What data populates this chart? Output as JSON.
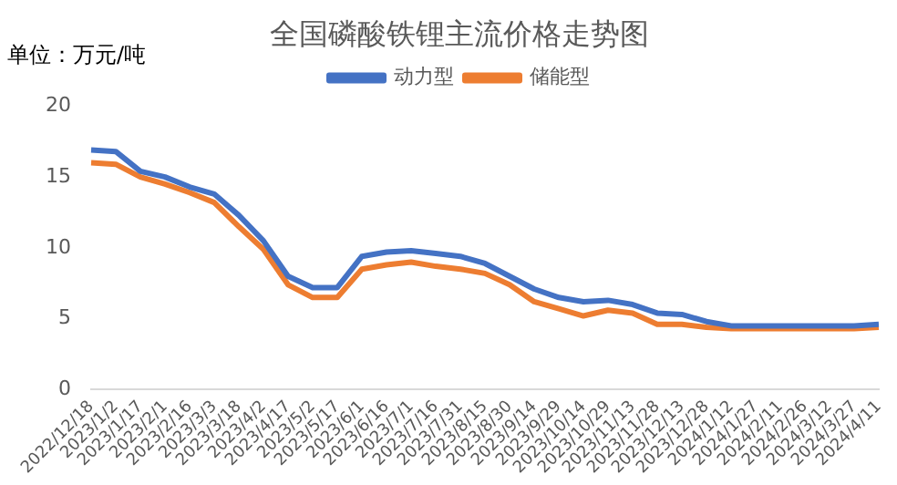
{
  "chart_data": {
    "type": "line",
    "title": "全国磷酸铁锂主流价格走势图",
    "ylabel": "单位：万元/吨",
    "categories": [
      "2022/12/18",
      "2023/1/2",
      "2023/1/17",
      "2023/2/1",
      "2023/2/16",
      "2023/3/3",
      "2023/3/18",
      "2023/4/2",
      "2023/4/17",
      "2023/5/2",
      "2023/5/17",
      "2023/6/1",
      "2023/6/16",
      "2023/7/1",
      "2023/7/16",
      "2023/7/31",
      "2023/8/15",
      "2023/8/30",
      "2023/9/14",
      "2023/9/29",
      "2023/10/14",
      "2023/10/29",
      "2023/11/13",
      "2023/11/28",
      "2023/12/13",
      "2023/12/28",
      "2024/1/12",
      "2024/1/27",
      "2024/2/11",
      "2024/2/26",
      "2024/3/12",
      "2024/3/27",
      "2024/4/11"
    ],
    "series": [
      {
        "name": "动力型",
        "color": "#4472c4",
        "values": [
          16.9,
          16.8,
          15.4,
          15.0,
          14.3,
          13.8,
          12.3,
          10.5,
          8.0,
          7.2,
          7.2,
          9.4,
          9.7,
          9.8,
          9.6,
          9.4,
          8.9,
          8.0,
          7.1,
          6.5,
          6.2,
          6.3,
          6.0,
          5.4,
          5.3,
          4.8,
          4.5,
          4.5,
          4.5,
          4.5,
          4.5,
          4.5,
          4.6
        ]
      },
      {
        "name": "储能型",
        "color": "#ed7d31",
        "values": [
          16.0,
          15.9,
          15.0,
          14.5,
          13.9,
          13.2,
          11.5,
          9.9,
          7.4,
          6.5,
          6.5,
          8.5,
          8.8,
          9.0,
          8.7,
          8.5,
          8.2,
          7.4,
          6.2,
          5.7,
          5.2,
          5.6,
          5.4,
          4.6,
          4.6,
          4.4,
          4.3,
          4.3,
          4.3,
          4.3,
          4.3,
          4.3,
          4.4
        ]
      }
    ],
    "ylim": [
      0,
      20
    ],
    "yticks": [
      0,
      5,
      10,
      15,
      20
    ],
    "legend": "top",
    "grid": false,
    "marker": "none",
    "line_style": "solid"
  }
}
